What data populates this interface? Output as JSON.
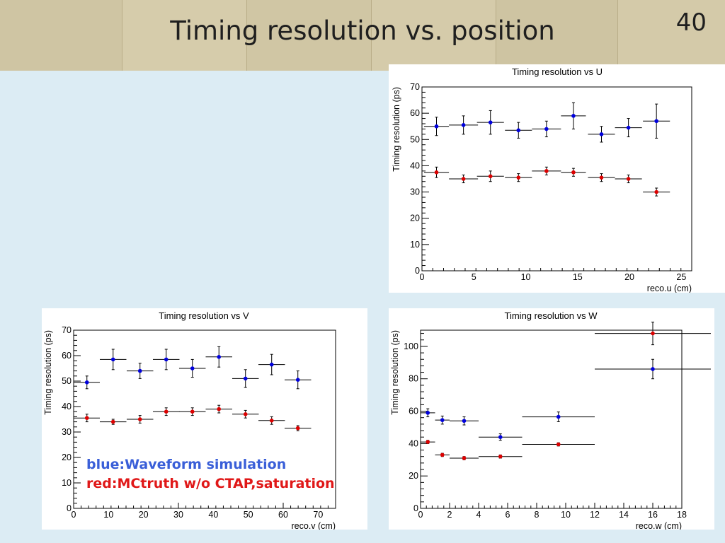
{
  "slide": {
    "title": "Timing resolution vs. position",
    "page_number": "40"
  },
  "legend": {
    "blue": "blue:Waveform simulation",
    "red": "red:MCtruth w/o CTAP,saturation"
  },
  "colors": {
    "blue_series": "#0000dd",
    "red_series": "#dd0000",
    "background": "#dcecf4",
    "header": "#d2c7a6"
  },
  "chart_data": [
    {
      "type": "scatter",
      "title": "Timing resolution vs U",
      "xlabel": "reco.u (cm)",
      "ylabel": "Timing resolution (ps)",
      "xlim": [
        0,
        26
      ],
      "ylim": [
        0,
        70
      ],
      "xticks": [
        0,
        5,
        10,
        15,
        20,
        25
      ],
      "yticks": [
        0,
        10,
        20,
        30,
        40,
        50,
        60,
        70
      ],
      "grid": false,
      "series": [
        {
          "color": "blue",
          "points": [
            {
              "x": 1.4,
              "xerr": 1.2,
              "y": 55.0,
              "yerr": 3.5
            },
            {
              "x": 4.0,
              "xerr": 1.4,
              "y": 55.5,
              "yerr": 3.5
            },
            {
              "x": 6.6,
              "xerr": 1.3,
              "y": 56.5,
              "yerr": 4.5
            },
            {
              "x": 9.3,
              "xerr": 1.3,
              "y": 53.5,
              "yerr": 3.0
            },
            {
              "x": 12.0,
              "xerr": 1.4,
              "y": 54.0,
              "yerr": 3.0
            },
            {
              "x": 14.6,
              "xerr": 1.2,
              "y": 59.0,
              "yerr": 5.0
            },
            {
              "x": 17.3,
              "xerr": 1.3,
              "y": 52.0,
              "yerr": 3.0
            },
            {
              "x": 19.9,
              "xerr": 1.3,
              "y": 54.5,
              "yerr": 3.5
            },
            {
              "x": 22.6,
              "xerr": 1.3,
              "y": 57.0,
              "yerr": 6.5
            }
          ]
        },
        {
          "color": "red",
          "points": [
            {
              "x": 1.4,
              "xerr": 1.2,
              "y": 37.5,
              "yerr": 2.0
            },
            {
              "x": 4.0,
              "xerr": 1.4,
              "y": 35.0,
              "yerr": 1.5
            },
            {
              "x": 6.6,
              "xerr": 1.3,
              "y": 36.0,
              "yerr": 2.0
            },
            {
              "x": 9.3,
              "xerr": 1.3,
              "y": 35.5,
              "yerr": 1.5
            },
            {
              "x": 12.0,
              "xerr": 1.4,
              "y": 38.0,
              "yerr": 1.5
            },
            {
              "x": 14.6,
              "xerr": 1.2,
              "y": 37.5,
              "yerr": 1.5
            },
            {
              "x": 17.3,
              "xerr": 1.3,
              "y": 35.5,
              "yerr": 1.5
            },
            {
              "x": 19.9,
              "xerr": 1.3,
              "y": 35.0,
              "yerr": 1.5
            },
            {
              "x": 22.6,
              "xerr": 1.3,
              "y": 30.0,
              "yerr": 1.5
            }
          ]
        }
      ]
    },
    {
      "type": "scatter",
      "title": "Timing resolution vs V",
      "xlabel": "reco.v (cm)",
      "ylabel": "Timing resolution (ps)",
      "xlim": [
        0,
        75
      ],
      "ylim": [
        0,
        70
      ],
      "xticks": [
        0,
        10,
        20,
        30,
        40,
        50,
        60,
        70
      ],
      "yticks": [
        0,
        10,
        20,
        30,
        40,
        50,
        60,
        70
      ],
      "grid": false,
      "series": [
        {
          "color": "blue",
          "points": [
            {
              "x": 3.8,
              "xerr": 3.7,
              "y": 49.5,
              "yerr": 2.5
            },
            {
              "x": 11.3,
              "xerr": 3.8,
              "y": 58.5,
              "yerr": 4.0
            },
            {
              "x": 19.0,
              "xerr": 3.8,
              "y": 54.0,
              "yerr": 3.0
            },
            {
              "x": 26.5,
              "xerr": 3.8,
              "y": 58.5,
              "yerr": 4.0
            },
            {
              "x": 34.0,
              "xerr": 3.8,
              "y": 55.0,
              "yerr": 3.5
            },
            {
              "x": 41.6,
              "xerr": 3.8,
              "y": 59.5,
              "yerr": 4.0
            },
            {
              "x": 49.2,
              "xerr": 3.8,
              "y": 51.0,
              "yerr": 3.5
            },
            {
              "x": 56.7,
              "xerr": 3.8,
              "y": 56.5,
              "yerr": 4.0
            },
            {
              "x": 64.2,
              "xerr": 3.8,
              "y": 50.5,
              "yerr": 3.5
            }
          ]
        },
        {
          "color": "red",
          "points": [
            {
              "x": 3.8,
              "xerr": 3.7,
              "y": 35.5,
              "yerr": 1.5
            },
            {
              "x": 11.3,
              "xerr": 3.8,
              "y": 34.0,
              "yerr": 1.0
            },
            {
              "x": 19.0,
              "xerr": 3.8,
              "y": 35.0,
              "yerr": 1.5
            },
            {
              "x": 26.5,
              "xerr": 3.8,
              "y": 38.0,
              "yerr": 1.5
            },
            {
              "x": 34.0,
              "xerr": 3.8,
              "y": 38.0,
              "yerr": 1.5
            },
            {
              "x": 41.6,
              "xerr": 3.8,
              "y": 39.0,
              "yerr": 1.5
            },
            {
              "x": 49.2,
              "xerr": 3.8,
              "y": 37.0,
              "yerr": 1.5
            },
            {
              "x": 56.7,
              "xerr": 3.8,
              "y": 34.5,
              "yerr": 1.5
            },
            {
              "x": 64.2,
              "xerr": 3.8,
              "y": 31.5,
              "yerr": 1.0
            }
          ]
        }
      ]
    },
    {
      "type": "scatter",
      "title": "Timing resolution vs W",
      "xlabel": "reco.w (cm)",
      "ylabel": "Timing resolution (ps)",
      "xlim": [
        0,
        18
      ],
      "ylim": [
        0,
        110
      ],
      "xticks": [
        0,
        2,
        4,
        6,
        8,
        10,
        12,
        14,
        16,
        18
      ],
      "yticks": [
        0,
        20,
        40,
        60,
        80,
        100
      ],
      "grid": false,
      "series": [
        {
          "color": "blue",
          "points": [
            {
              "x": 0.5,
              "xerr": 0.5,
              "y": 59.0,
              "yerr": 2.5
            },
            {
              "x": 1.5,
              "xerr": 0.5,
              "y": 54.5,
              "yerr": 2.5
            },
            {
              "x": 3.0,
              "xerr": 1.0,
              "y": 54.0,
              "yerr": 2.5
            },
            {
              "x": 5.5,
              "xerr": 1.5,
              "y": 44.0,
              "yerr": 2.0
            },
            {
              "x": 9.5,
              "xerr": 2.5,
              "y": 56.5,
              "yerr": 3.0
            },
            {
              "x": 16.0,
              "xerr": 4.0,
              "y": 86.0,
              "yerr": 6.0
            }
          ]
        },
        {
          "color": "red",
          "points": [
            {
              "x": 0.5,
              "xerr": 0.5,
              "y": 41.0,
              "yerr": 1.0
            },
            {
              "x": 1.5,
              "xerr": 0.5,
              "y": 33.0,
              "yerr": 1.0
            },
            {
              "x": 3.0,
              "xerr": 1.0,
              "y": 31.0,
              "yerr": 1.0
            },
            {
              "x": 5.5,
              "xerr": 1.5,
              "y": 32.0,
              "yerr": 1.0
            },
            {
              "x": 9.5,
              "xerr": 2.5,
              "y": 39.5,
              "yerr": 1.0
            },
            {
              "x": 16.0,
              "xerr": 4.0,
              "y": 108.0,
              "yerr": 7.0
            }
          ]
        }
      ]
    }
  ]
}
